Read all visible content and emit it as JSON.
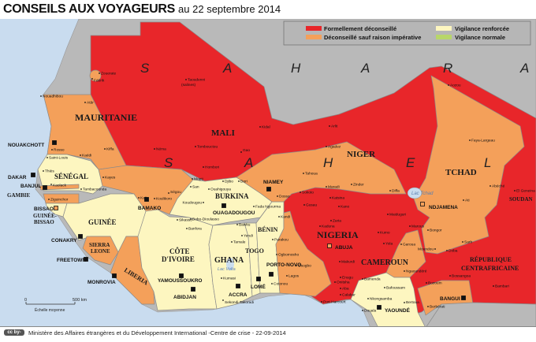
{
  "header": {
    "title": "CONSEILS AUX VOYAGEURS",
    "subtitle": "au 22 septembre 2014"
  },
  "legend": {
    "items": [
      {
        "label": "Formellement déconseillé",
        "color": "#e8262a"
      },
      {
        "label": "Déconseillé sauf raison impérative",
        "color": "#f4a05a"
      },
      {
        "label": "Vigilance renforcée",
        "color": "#fdf6c0"
      },
      {
        "label": "Vigilance normale",
        "color": "#b8d66a"
      }
    ]
  },
  "colors": {
    "sea": "#c9dcef",
    "other_land": "#b9b9b9",
    "border": "#8a8a8a"
  },
  "sahara_letters": [
    "S",
    "A",
    "H",
    "A",
    "R",
    "A",
    "S",
    "A",
    "H",
    "E",
    "L"
  ],
  "countries": {
    "mauritanie": "MAURITANIE",
    "senegal": "SÉNÉGAL",
    "gambie": "GAMBIE",
    "guinee_bissao": [
      "GUINÉE-",
      "BISSAO"
    ],
    "guinee": "GUINÉE",
    "sierra_leone": [
      "SIERRA",
      "LEONE"
    ],
    "liberia": "LIBERIA",
    "cote_divoire": [
      "CÔTE",
      "D'IVOIRE"
    ],
    "burkina": "BURKINA",
    "ghana": "GHANA",
    "togo": "TOGO",
    "benin": "BÉNIN",
    "nigeria": "NIGERIA",
    "niger": "NIGER",
    "mali": "MALI",
    "tchad": "TCHAD",
    "cameroun": "CAMEROUN",
    "rca": [
      "RÉPUBLIQUE",
      "CENTRAFRICAINE"
    ],
    "soudan": "SOUDAN"
  },
  "capitals": [
    "NOUAKCHOTT",
    "DAKAR",
    "BANJUL",
    "BISSAO",
    "CONAKRY",
    "FREETOWN",
    "MONROVIA",
    "BAMAKO",
    "YAMOUSSOUKRO",
    "ABIDJAN",
    "OUAGADOUGOU",
    "ACCRA",
    "LOMÉ",
    "PORTO-NOVO",
    "NIAMEY",
    "ABUJA",
    "NDJAMENA",
    "BANGUI",
    "YAOUNDÉ"
  ],
  "cities": [
    "Zouerate",
    "Fdérik",
    "Nouadhibou",
    "Atâr",
    "Rosso",
    "Saint-Louis",
    "Kaédi",
    "Kiffa",
    "Néma",
    "Thiès",
    "Kaolack",
    "Tambacounda",
    "Kayes",
    "Ziguinchor",
    "Kati",
    "Koulikoro",
    "Ségou",
    "Mopti",
    "San",
    "Taoudenni",
    "(salines)",
    "Kidal",
    "Tombouctou",
    "Gao",
    "Hombori",
    "Arlit",
    "Agadez",
    "Tahoua",
    "Djibo",
    "Dori",
    "Ouahigouya",
    "Dosso",
    "Maradi",
    "Zinder",
    "Sokoto",
    "Katsina",
    "Gusau",
    "Koudougou",
    "Bobo-Dioulasso",
    "Fada Ngourma",
    "Banfora",
    "Bawku",
    "Sikasso",
    "Tamale",
    "Yendi",
    "Kumasi",
    "Sekondi-Takoradi",
    "Cotonou",
    "Lagos",
    "Ogbomosho",
    "Osogbo",
    "Parakou",
    "Kandi",
    "Kano",
    "Zaria",
    "Kaduna",
    "Maiduguri",
    "Kumo",
    "Yola",
    "Makurdi",
    "Diffa",
    "Aozou",
    "Faya-Largeau",
    "Abéché",
    "Ati",
    "El Geneina",
    "Marous",
    "Bongor",
    "Garoua",
    "Moundou",
    "Doba",
    "Sarh",
    "Ngaoundéré",
    "Bossangoa",
    "Bambari",
    "Bozoum",
    "Berbérati",
    "Bertoua",
    "Bamenda",
    "Bafoussam",
    "Nkongsamba",
    "Douala",
    "Calabar",
    "Enugu",
    "Onitsha",
    "Aba",
    "Port Harcourt"
  ],
  "lakes": {
    "tchad": "Lac Tchad",
    "volta": "Lac Volta"
  },
  "scale": {
    "zero": "0",
    "max": "500 km",
    "label": "Échelle moyenne"
  },
  "footer": {
    "license": "cc by-nc-nd",
    "credit": "Ministère des Affaires étrangères et du Développement International -Centre de crise -  22-09-2014"
  }
}
